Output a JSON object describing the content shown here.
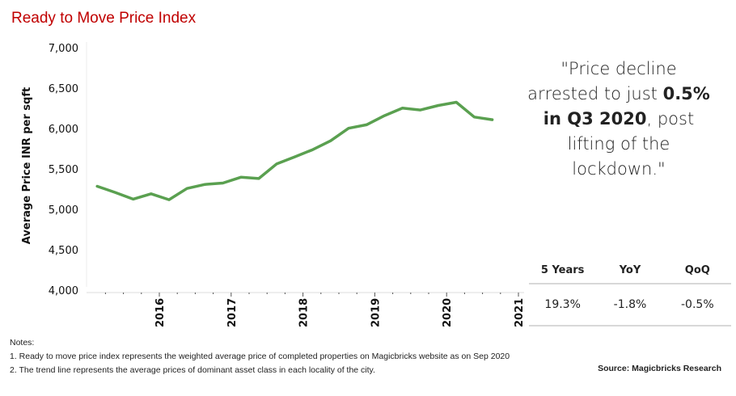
{
  "chart_data": {
    "type": "line",
    "title": "Ready to Move Price Index",
    "ylabel": "Average Price INR per sqft",
    "xlabel": "",
    "ylim": [
      4000,
      7000
    ],
    "yticks": [
      "4,000",
      "4,500",
      "5,000",
      "5,500",
      "6,000",
      "6,500",
      "7,000"
    ],
    "ytick_values": [
      4000,
      4500,
      5000,
      5500,
      6000,
      6500,
      7000
    ],
    "xticks": [
      "2016",
      "2017",
      "2018",
      "2019",
      "2020",
      "2021"
    ],
    "grid": false,
    "color": "#5aa050",
    "x": [
      "Q1 2015",
      "Q2 2015",
      "Q3 2015",
      "Q4 2015",
      "Q1 2016",
      "Q2 2016",
      "Q3 2016",
      "Q4 2016",
      "Q1 2017",
      "Q2 2017",
      "Q3 2017",
      "Q4 2017",
      "Q1 2018",
      "Q2 2018",
      "Q3 2018",
      "Q4 2018",
      "Q1 2019",
      "Q2 2019",
      "Q3 2019",
      "Q4 2019",
      "Q1 2020",
      "Q2 2020",
      "Q3 2020"
    ],
    "values": [
      5285,
      5209,
      5126,
      5192,
      5119,
      5258,
      5308,
      5325,
      5397,
      5381,
      5563,
      5649,
      5738,
      5848,
      6003,
      6046,
      6159,
      6252,
      6229,
      6285,
      6325,
      6142,
      6109
    ]
  },
  "quote": {
    "line1": "\"Price decline",
    "line2a": "arrested to just ",
    "line2b": "0.5%",
    "line3a": "in Q3 2020",
    "line3b": ", post",
    "line4": "lifting of the",
    "line5": "lockdown.\""
  },
  "stats": {
    "headers": [
      "5 Years",
      "YoY",
      "QoQ"
    ],
    "values": [
      "19.3%",
      "-1.8%",
      "-0.5%"
    ]
  },
  "notes": {
    "heading": "Notes:",
    "items": [
      "1. Ready to move price index represents the weighted average price of completed properties on Magicbricks website as on Sep 2020",
      "2. The trend line represents  the average prices of dominant asset class in each locality of the city."
    ]
  },
  "source": "Source: Magicbricks Research"
}
